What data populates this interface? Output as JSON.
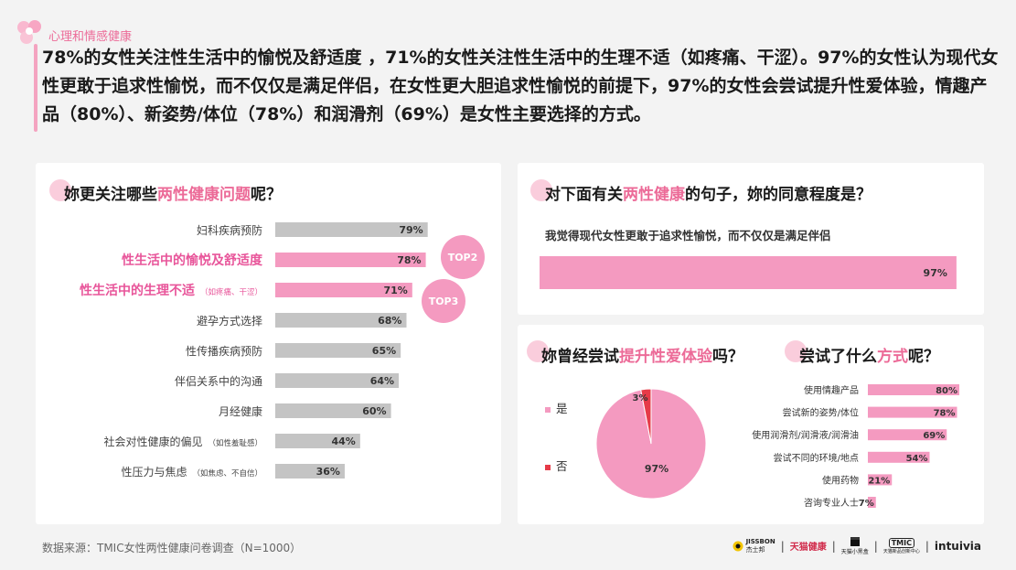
{
  "header": {
    "section_tag": "心理和情感健康",
    "headline": "78%的女性关注性生活中的愉悦及舒适度 ，71%的女性关注性生活中的生理不适（如疼痛、干涩）。97%的女性认为现代女性更敢于追求性愉悦，而不仅仅是满足伴侣，在女性更大胆追求性愉悦的前提下，97%的女性会尝试提升性爱体验，情趣产品（80%）、新姿势/体位（78%）和润滑剂（69%）是女性主要选择的方式。"
  },
  "left_card": {
    "title_pre": "妳更关注哪些",
    "title_hl": "两性健康问题",
    "title_post": "呢？"
  },
  "top_right_card": {
    "title_pre": "对下面有关",
    "title_hl": "两性健康",
    "title_post": "的句子，妳的同意程度是？",
    "statement": "我觉得现代女性更敢于追求性愉悦，而不仅仅是满足伴侣"
  },
  "bottom_right_card": {
    "pie_title_pre": "妳曾经尝试",
    "pie_title_hl": "提升性爱体验",
    "pie_title_post": "吗？",
    "methods_title_pre": "尝试了什么",
    "methods_title_hl": "方式",
    "methods_title_post": "呢？"
  },
  "chart_data": [
    {
      "id": "concerns",
      "type": "bar",
      "orientation": "horizontal",
      "categories": [
        "妇科疾病预防",
        "性生活中的愉悦及舒适度",
        "性生活中的生理不适",
        "避孕方式选择",
        "性传播疾病预防",
        "伴侣关系中的沟通",
        "月经健康",
        "社会对性健康的偏见",
        "性压力与焦虑"
      ],
      "notes": [
        "",
        "",
        "（如疼痛、干涩）",
        "",
        "",
        "",
        "",
        "（如性羞耻感）",
        "（如焦虑、不自信）"
      ],
      "values": [
        79,
        78,
        71,
        68,
        65,
        64,
        60,
        44,
        36
      ],
      "value_labels": [
        "79%",
        "78%",
        "71%",
        "68%",
        "65%",
        "64%",
        "60%",
        "44%",
        "36%"
      ],
      "highlight": [
        false,
        true,
        true,
        false,
        false,
        false,
        false,
        false,
        false
      ],
      "badges": {
        "1": "TOP2",
        "2": "TOP3"
      },
      "xlim": [
        0,
        100
      ],
      "colors": {
        "default": "#c4c4c4",
        "highlight": "#f49ac0",
        "highlight_text": "#e8559a"
      }
    },
    {
      "id": "agreement",
      "type": "bar",
      "orientation": "horizontal",
      "categories": [
        "我觉得现代女性更敢于追求性愉悦，而不仅仅是满足伴侣"
      ],
      "values": [
        97
      ],
      "value_labels": [
        "97%"
      ],
      "xlim": [
        0,
        100
      ],
      "colors": {
        "bar": "#f49ac0"
      }
    },
    {
      "id": "tried",
      "type": "pie",
      "labels": [
        "是",
        "否"
      ],
      "values": [
        97,
        3
      ],
      "value_labels": [
        "97%",
        "3%"
      ],
      "colors": [
        "#f49ac0",
        "#e63b48"
      ]
    },
    {
      "id": "methods",
      "type": "bar",
      "orientation": "horizontal",
      "categories": [
        "使用情趣产品",
        "尝试新的姿势/体位",
        "使用润滑剂/润滑液/润滑油",
        "尝试不同的环境/地点",
        "使用药物",
        "咨询专业人士"
      ],
      "values": [
        80,
        78,
        69,
        54,
        21,
        7
      ],
      "value_labels": [
        "80%",
        "78%",
        "69%",
        "54%",
        "21%",
        "7%"
      ],
      "xlim": [
        0,
        100
      ],
      "colors": {
        "bar": "#f49ac0"
      }
    }
  ],
  "footer": {
    "source": "数据来源：TMIC女性两性健康问卷调查（N=1000）",
    "brands": {
      "jissbon": "JISSBON",
      "jissbon_cn": "杰士邦",
      "tmall_health": "天猫健康",
      "tmall_xiaohei": "天猫小黑盒",
      "tmic": "TMIC",
      "tmic_sub": "天猫新品创新中心",
      "intuivia": "intuivia"
    }
  }
}
